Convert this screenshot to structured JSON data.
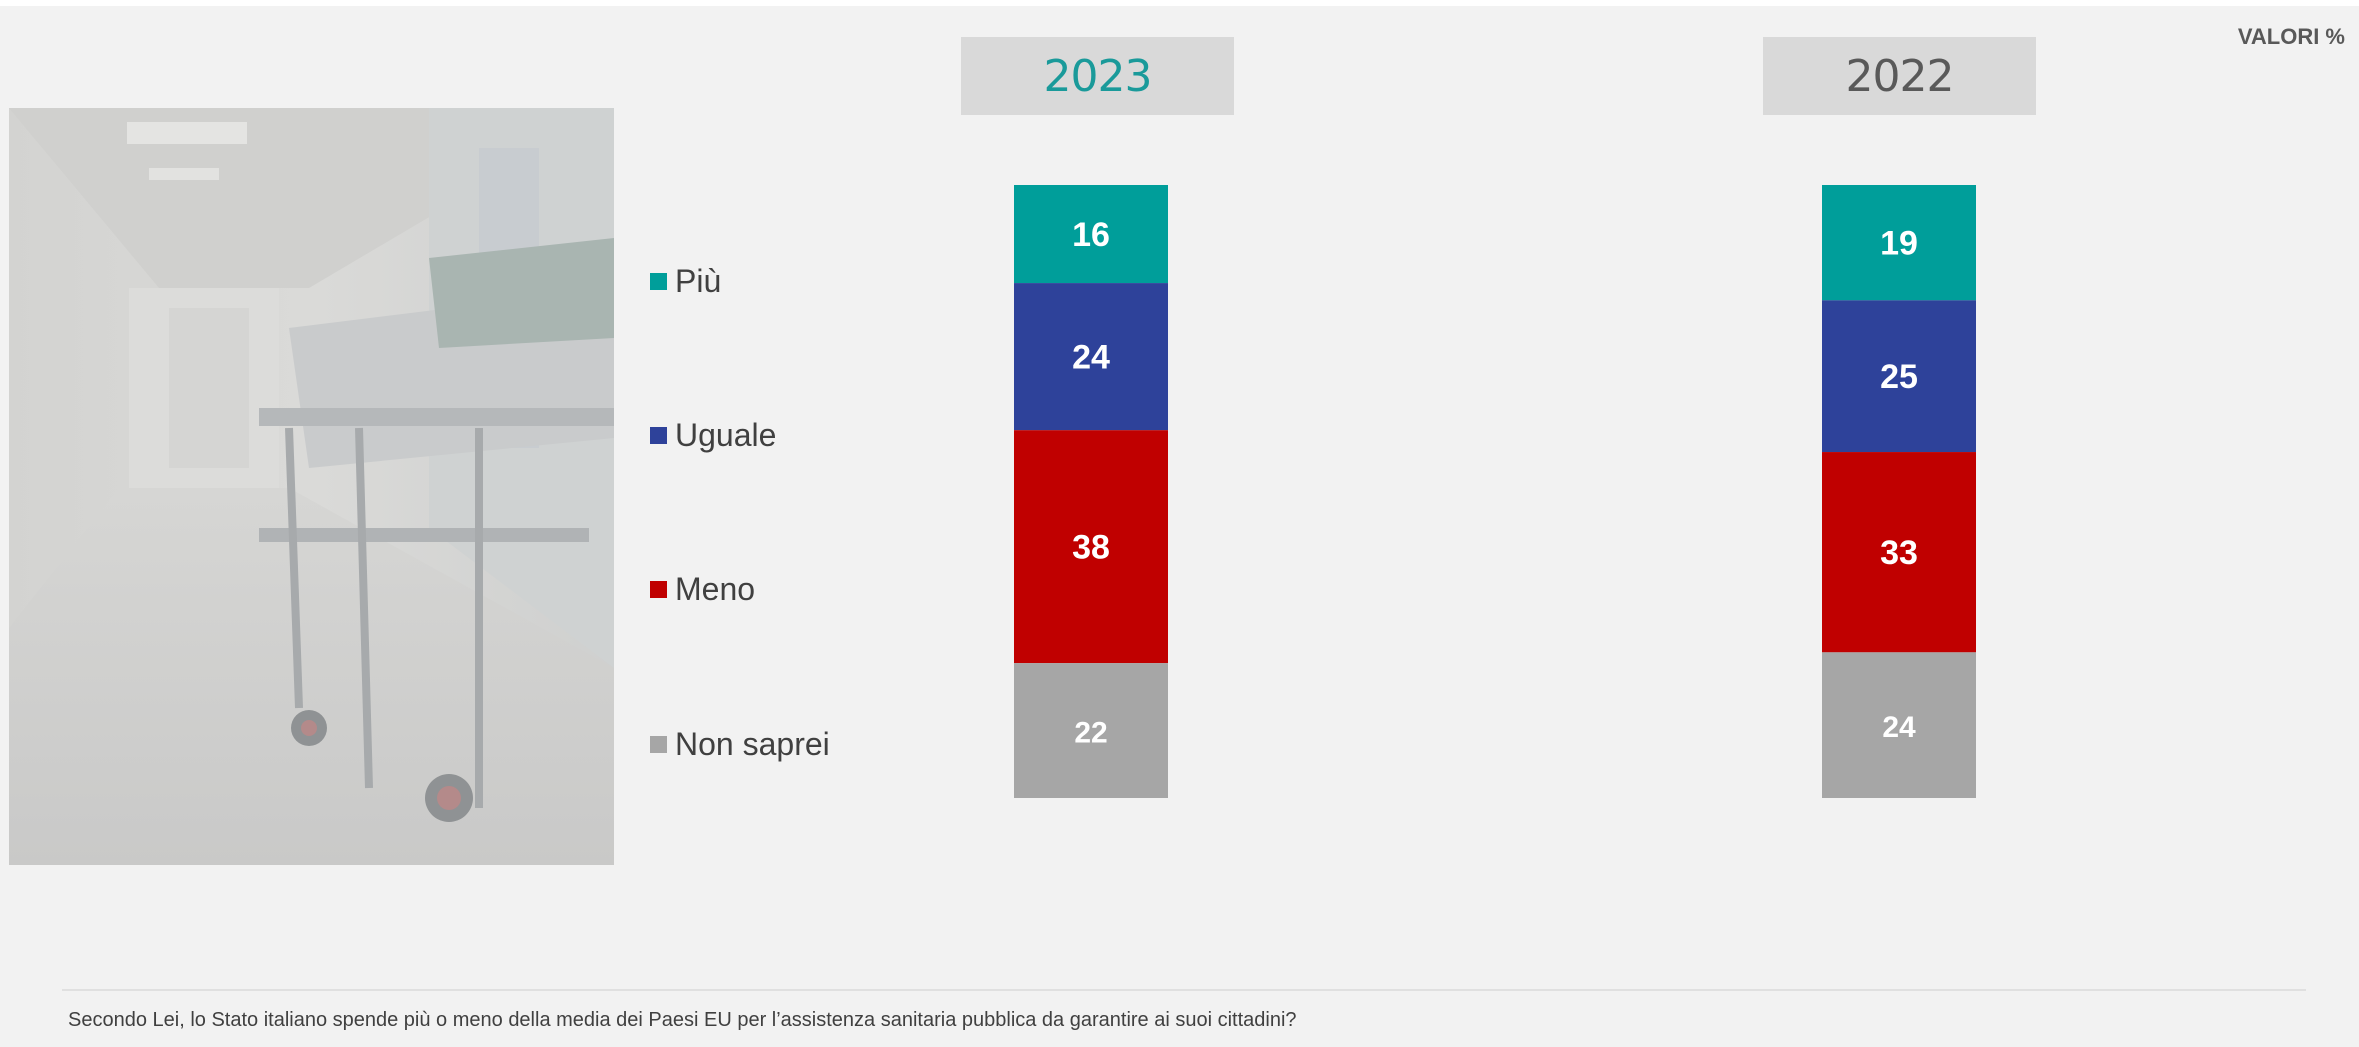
{
  "header": {
    "unit_label": "VALORI %"
  },
  "question": "Secondo Lei, lo Stato italiano spende più o meno della media dei Paesi EU per l’assistenza sanitaria pubblica da garantire ai suoi cittadini?",
  "legend": [
    {
      "label": "Più",
      "color": "#009e9a"
    },
    {
      "label": "Uguale",
      "color": "#2e429a"
    },
    {
      "label": "Meno",
      "color": "#c00000"
    },
    {
      "label": "Non saprei",
      "color": "#a6a6a6"
    }
  ],
  "years": [
    {
      "label": "2023",
      "color": "#1a9a9a"
    },
    {
      "label": "2022",
      "color": "#595959"
    }
  ],
  "chart_data": {
    "type": "bar",
    "stacked": true,
    "percent": true,
    "categories": [
      "2023",
      "2022"
    ],
    "series": [
      {
        "name": "Più",
        "color": "#009e9a",
        "values": [
          16,
          19
        ]
      },
      {
        "name": "Uguale",
        "color": "#2e429a",
        "values": [
          24,
          25
        ]
      },
      {
        "name": "Meno",
        "color": "#c00000",
        "values": [
          38,
          33
        ]
      },
      {
        "name": "Non saprei",
        "color": "#a6a6a6",
        "values": [
          22,
          24
        ]
      }
    ],
    "legend_position": "left"
  }
}
